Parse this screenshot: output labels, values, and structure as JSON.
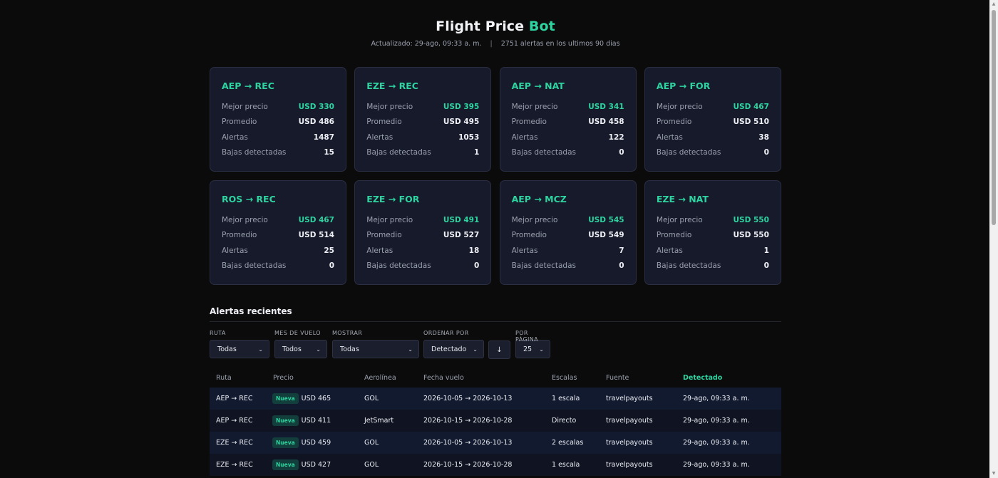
{
  "header": {
    "title_main": "Flight Price",
    "title_accent": "Bot",
    "updated": "Actualizado: 29-ago, 09:33 a. m.",
    "separator": "|",
    "alerts_summary": "2751 alertas en los ultimos 90 dias"
  },
  "labels": {
    "best": "Mejor precio",
    "avg": "Promedio",
    "alerts": "Alertas",
    "drops": "Bajas detectadas"
  },
  "cards": [
    {
      "route": "AEP → REC",
      "best": "USD 330",
      "avg": "USD 486",
      "alerts": "1487",
      "drops": "15"
    },
    {
      "route": "EZE → REC",
      "best": "USD 395",
      "avg": "USD 495",
      "alerts": "1053",
      "drops": "1"
    },
    {
      "route": "AEP → NAT",
      "best": "USD 341",
      "avg": "USD 458",
      "alerts": "122",
      "drops": "0"
    },
    {
      "route": "AEP → FOR",
      "best": "USD 467",
      "avg": "USD 510",
      "alerts": "38",
      "drops": "0"
    },
    {
      "route": "ROS → REC",
      "best": "USD 467",
      "avg": "USD 514",
      "alerts": "25",
      "drops": "0"
    },
    {
      "route": "EZE → FOR",
      "best": "USD 491",
      "avg": "USD 527",
      "alerts": "18",
      "drops": "0"
    },
    {
      "route": "AEP → MCZ",
      "best": "USD 545",
      "avg": "USD 549",
      "alerts": "7",
      "drops": "0"
    },
    {
      "route": "EZE → NAT",
      "best": "USD 550",
      "avg": "USD 550",
      "alerts": "1",
      "drops": "0"
    }
  ],
  "recent": {
    "title": "Alertas recientes",
    "filters": {
      "ruta": {
        "label": "RUTA",
        "value": "Todas"
      },
      "mes": {
        "label": "MES DE VUELO",
        "value": "Todos"
      },
      "mostrar": {
        "label": "MOSTRAR",
        "value": "Todas"
      },
      "ordenar": {
        "label": "ORDENAR POR",
        "value": "Detectado"
      },
      "sort_dir": "↓",
      "por_pagina": {
        "label": "POR PÁGINA",
        "value": "25"
      }
    },
    "columns": {
      "ruta": "Ruta",
      "precio": "Precio",
      "aerolinea": "Aerolínea",
      "fecha": "Fecha vuelo",
      "escalas": "Escalas",
      "fuente": "Fuente",
      "detectado": "Detectado"
    },
    "rows": [
      {
        "ruta": "AEP → REC",
        "badge": "Nueva",
        "precio": "USD 465",
        "aerolinea": "GOL",
        "fecha": "2026-10-05 → 2026-10-13",
        "escalas": "1 escala",
        "fuente": "travelpayouts",
        "detectado": "29-ago, 09:33 a. m."
      },
      {
        "ruta": "AEP → REC",
        "badge": "Nueva",
        "precio": "USD 411",
        "aerolinea": "JetSmart",
        "fecha": "2026-10-15 → 2026-10-28",
        "escalas": "Directo",
        "fuente": "travelpayouts",
        "detectado": "29-ago, 09:33 a. m."
      },
      {
        "ruta": "EZE → REC",
        "badge": "Nueva",
        "precio": "USD 459",
        "aerolinea": "GOL",
        "fecha": "2026-10-05 → 2026-10-13",
        "escalas": "2 escalas",
        "fuente": "travelpayouts",
        "detectado": "29-ago, 09:33 a. m."
      },
      {
        "ruta": "EZE → REC",
        "badge": "Nueva",
        "precio": "USD 427",
        "aerolinea": "GOL",
        "fecha": "2026-10-15 → 2026-10-28",
        "escalas": "1 escala",
        "fuente": "travelpayouts",
        "detectado": "29-ago, 09:33 a. m."
      }
    ]
  },
  "colors": {
    "accent": "#2dd4a0",
    "background": "#0b0b0c",
    "card": "#171a2b"
  },
  "icons": {
    "select_chevron": "chevron-down-icon",
    "sort": "arrow-down-icon"
  }
}
